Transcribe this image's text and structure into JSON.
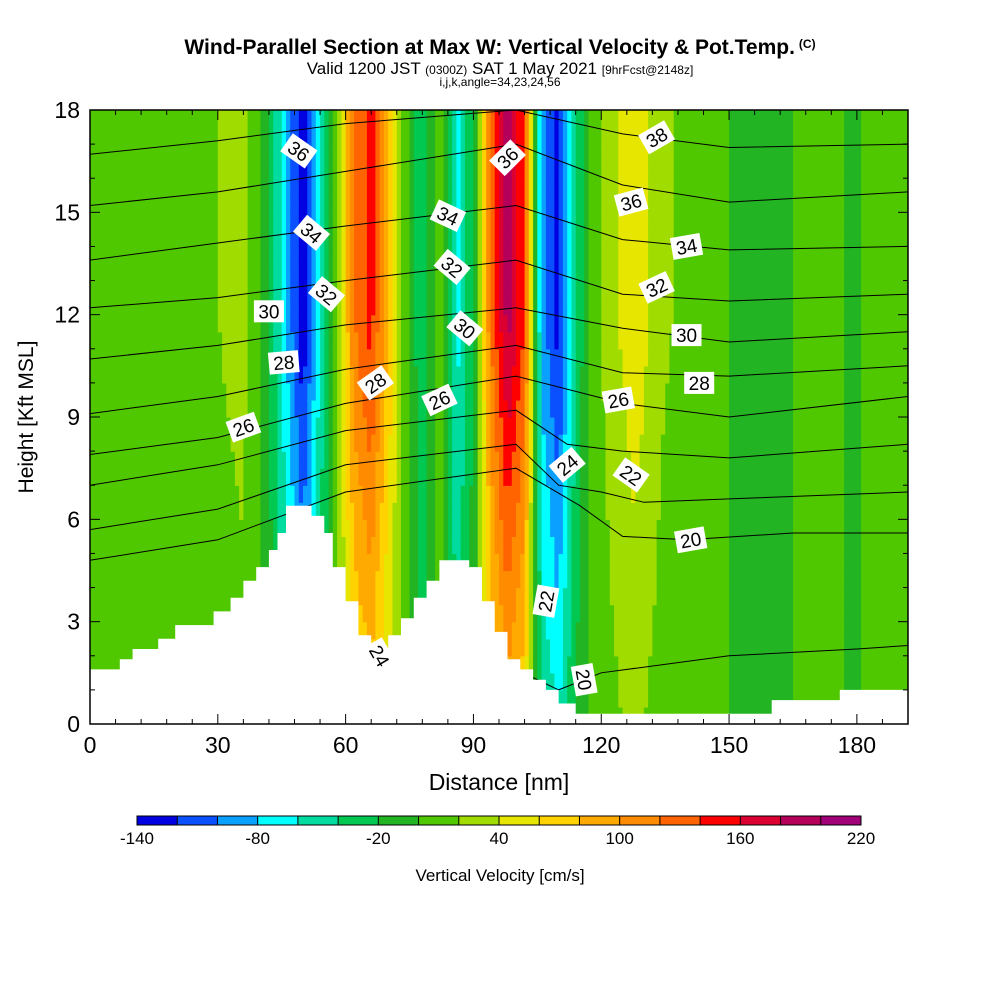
{
  "header": {
    "title": "Wind-Parallel Section at Max W: Vertical Velocity & Pot.Temp.",
    "copyright": "(C)",
    "subtitle_main": "Valid 1200 JST",
    "subtitle_utc": "(0300Z)",
    "subtitle_date": "SAT 1 May 2021",
    "subtitle_fcst": "[9hrFcst@2148z]",
    "index_line": "i,j,k,angle=34,23,24,56"
  },
  "chart_data": {
    "type": "heatmap",
    "title": "Wind-Parallel Section at Max W: Vertical Velocity & Pot.Temp.",
    "xlabel": "Distance [nm]",
    "ylabel": "Height [Kft MSL]",
    "xlim": [
      0,
      192
    ],
    "ylim": [
      0,
      18
    ],
    "xticks": [
      0,
      30,
      60,
      90,
      120,
      150,
      180
    ],
    "yticks": [
      0,
      3,
      6,
      9,
      12,
      15,
      18
    ],
    "colorbar": {
      "label": "Vertical Velocity [cm/s]",
      "tick_labels": [
        "-140",
        "-80",
        "-20",
        "40",
        "100",
        "160",
        "220"
      ],
      "tick_values": [
        -140,
        -80,
        -20,
        40,
        100,
        160,
        220
      ],
      "levels": [
        -140,
        -120,
        -100,
        -80,
        -60,
        -40,
        -20,
        0,
        20,
        40,
        60,
        80,
        100,
        120,
        140,
        160,
        180,
        200,
        220
      ],
      "colors": [
        "#0000e0",
        "#0a50ff",
        "#0aa0ff",
        "#00ffff",
        "#00dca0",
        "#00c850",
        "#22b422",
        "#50c800",
        "#a0dc00",
        "#e6e600",
        "#ffd200",
        "#ffaa00",
        "#ff8c00",
        "#ff6400",
        "#ff0000",
        "#dc0032",
        "#b4005a",
        "#a00078",
        "#780096"
      ]
    },
    "vertical_velocity_columns": [
      {
        "x": 0,
        "w": 8
      },
      {
        "x": 8,
        "w": 8
      },
      {
        "x": 16,
        "w": 12
      },
      {
        "x": 24,
        "w": 8
      },
      {
        "x": 30,
        "w": 20
      },
      {
        "x": 36,
        "w": 28
      },
      {
        "x": 42,
        "w": -20
      },
      {
        "x": 46,
        "w": -80
      },
      {
        "x": 50,
        "w": -140
      },
      {
        "x": 54,
        "w": -60
      },
      {
        "x": 58,
        "w": 20
      },
      {
        "x": 62,
        "w": 120
      },
      {
        "x": 66,
        "w": 150
      },
      {
        "x": 70,
        "w": 80
      },
      {
        "x": 74,
        "w": 10
      },
      {
        "x": 78,
        "w": -40
      },
      {
        "x": 82,
        "w": 20
      },
      {
        "x": 86,
        "w": -70
      },
      {
        "x": 90,
        "w": -20
      },
      {
        "x": 94,
        "w": 120
      },
      {
        "x": 98,
        "w": 190
      },
      {
        "x": 102,
        "w": 140
      },
      {
        "x": 106,
        "w": -90
      },
      {
        "x": 110,
        "w": -130
      },
      {
        "x": 114,
        "w": -40
      },
      {
        "x": 118,
        "w": 10
      },
      {
        "x": 124,
        "w": 40
      },
      {
        "x": 128,
        "w": 55
      },
      {
        "x": 134,
        "w": 25
      },
      {
        "x": 142,
        "w": 10
      },
      {
        "x": 150,
        "w": 0
      },
      {
        "x": 160,
        "w": -10
      },
      {
        "x": 170,
        "w": 10
      },
      {
        "x": 180,
        "w": -5
      },
      {
        "x": 186,
        "w": 15
      },
      {
        "x": 192,
        "w": 15
      }
    ],
    "terrain": [
      [
        0,
        1.6
      ],
      [
        7,
        1.6
      ],
      [
        7,
        1.9
      ],
      [
        10,
        1.9
      ],
      [
        10,
        2.2
      ],
      [
        16,
        2.2
      ],
      [
        16,
        2.5
      ],
      [
        20,
        2.5
      ],
      [
        20,
        2.9
      ],
      [
        29,
        2.9
      ],
      [
        29,
        3.3
      ],
      [
        33,
        3.3
      ],
      [
        33,
        3.7
      ],
      [
        36,
        3.7
      ],
      [
        36,
        4.2
      ],
      [
        39,
        4.2
      ],
      [
        39,
        4.6
      ],
      [
        42,
        4.6
      ],
      [
        42,
        5.1
      ],
      [
        44,
        5.1
      ],
      [
        44,
        5.6
      ],
      [
        46,
        5.6
      ],
      [
        46,
        6.4
      ],
      [
        52,
        6.4
      ],
      [
        52,
        6.1
      ],
      [
        55,
        6.1
      ],
      [
        55,
        5.6
      ],
      [
        57,
        5.6
      ],
      [
        57,
        4.6
      ],
      [
        60,
        4.6
      ],
      [
        60,
        3.6
      ],
      [
        63,
        3.6
      ],
      [
        63,
        2.6
      ],
      [
        66,
        2.6
      ],
      [
        66,
        2.0
      ],
      [
        70,
        2.0
      ],
      [
        70,
        2.6
      ],
      [
        73,
        2.6
      ],
      [
        73,
        3.1
      ],
      [
        76,
        3.1
      ],
      [
        76,
        3.7
      ],
      [
        79,
        3.7
      ],
      [
        79,
        4.2
      ],
      [
        82,
        4.2
      ],
      [
        82,
        4.8
      ],
      [
        89,
        4.8
      ],
      [
        89,
        4.6
      ],
      [
        92,
        4.6
      ],
      [
        92,
        3.6
      ],
      [
        95,
        3.6
      ],
      [
        95,
        2.7
      ],
      [
        98,
        2.7
      ],
      [
        98,
        1.9
      ],
      [
        101,
        1.9
      ],
      [
        101,
        1.6
      ],
      [
        104,
        1.6
      ],
      [
        104,
        1.3
      ],
      [
        107,
        1.3
      ],
      [
        107,
        1.0
      ],
      [
        110,
        1.0
      ],
      [
        110,
        0.6
      ],
      [
        114,
        0.6
      ],
      [
        114,
        0.3
      ],
      [
        160,
        0.3
      ],
      [
        160,
        0.7
      ],
      [
        176,
        0.7
      ],
      [
        176,
        1.0
      ],
      [
        192,
        1.0
      ]
    ],
    "theta_contours": [
      {
        "label": "20",
        "pts": [
          [
            0,
            0.9
          ],
          [
            30,
            1.3
          ],
          [
            60,
            1.8
          ],
          [
            100,
            1.6
          ],
          [
            110,
            1.0
          ],
          [
            120,
            1.5
          ],
          [
            150,
            2.0
          ],
          [
            180,
            2.2
          ],
          [
            192,
            2.3
          ]
        ]
      },
      {
        "label": "20",
        "pts": [
          [
            0,
            4.8
          ],
          [
            30,
            5.4
          ],
          [
            60,
            6.8
          ],
          [
            100,
            7.5
          ],
          [
            115,
            6.4
          ],
          [
            125,
            5.5
          ],
          [
            140,
            5.4
          ],
          [
            165,
            5.6
          ],
          [
            192,
            5.6
          ]
        ]
      },
      {
        "label": "22",
        "pts": [
          [
            0,
            5.7
          ],
          [
            30,
            6.3
          ],
          [
            60,
            7.6
          ],
          [
            100,
            8.2
          ],
          [
            110,
            7.0
          ],
          [
            120,
            6.8
          ],
          [
            130,
            6.5
          ],
          [
            150,
            6.6
          ],
          [
            192,
            6.8
          ]
        ]
      },
      {
        "label": "24",
        "pts": [
          [
            0,
            7.0
          ],
          [
            30,
            7.6
          ],
          [
            60,
            8.6
          ],
          [
            100,
            9.2
          ],
          [
            112,
            8.2
          ],
          [
            125,
            8.0
          ],
          [
            150,
            7.8
          ],
          [
            192,
            8.2
          ]
        ]
      },
      {
        "label": "26",
        "pts": [
          [
            0,
            7.9
          ],
          [
            30,
            8.4
          ],
          [
            60,
            9.4
          ],
          [
            100,
            10.2
          ],
          [
            125,
            9.4
          ],
          [
            150,
            9.0
          ],
          [
            192,
            9.6
          ]
        ]
      },
      {
        "label": "28",
        "pts": [
          [
            0,
            9.1
          ],
          [
            30,
            9.6
          ],
          [
            60,
            10.4
          ],
          [
            100,
            11.1
          ],
          [
            125,
            10.3
          ],
          [
            150,
            10.2
          ],
          [
            192,
            10.5
          ]
        ]
      },
      {
        "label": "30",
        "pts": [
          [
            0,
            10.7
          ],
          [
            30,
            11.1
          ],
          [
            60,
            11.7
          ],
          [
            100,
            12.2
          ],
          [
            125,
            11.6
          ],
          [
            150,
            11.2
          ],
          [
            192,
            11.5
          ]
        ]
      },
      {
        "label": "32",
        "pts": [
          [
            0,
            12.2
          ],
          [
            30,
            12.5
          ],
          [
            60,
            13.0
          ],
          [
            100,
            13.6
          ],
          [
            125,
            12.6
          ],
          [
            150,
            12.4
          ],
          [
            192,
            12.6
          ]
        ]
      },
      {
        "label": "34",
        "pts": [
          [
            0,
            13.6
          ],
          [
            30,
            14.1
          ],
          [
            60,
            14.6
          ],
          [
            100,
            15.2
          ],
          [
            125,
            14.2
          ],
          [
            150,
            13.9
          ],
          [
            192,
            14.0
          ]
        ]
      },
      {
        "label": "36",
        "pts": [
          [
            0,
            15.2
          ],
          [
            30,
            15.6
          ],
          [
            60,
            16.2
          ],
          [
            100,
            17.0
          ],
          [
            125,
            15.8
          ],
          [
            150,
            15.3
          ],
          [
            192,
            15.6
          ]
        ]
      },
      {
        "label": "38",
        "pts": [
          [
            0,
            16.7
          ],
          [
            30,
            17.1
          ],
          [
            60,
            17.6
          ],
          [
            100,
            18.0
          ],
          [
            125,
            17.3
          ],
          [
            150,
            16.9
          ],
          [
            192,
            17.0
          ]
        ]
      }
    ],
    "contour_labels": [
      {
        "text": "36",
        "x": 49,
        "y": 16.8,
        "rot": 35
      },
      {
        "text": "34",
        "x": 52,
        "y": 14.4,
        "rot": 40
      },
      {
        "text": "32",
        "x": 55.5,
        "y": 12.6,
        "rot": 40
      },
      {
        "text": "30",
        "x": 42,
        "y": 12.1,
        "rot": 0
      },
      {
        "text": "28",
        "x": 45.5,
        "y": 10.6,
        "rot": -5
      },
      {
        "text": "26",
        "x": 36,
        "y": 8.7,
        "rot": -20
      },
      {
        "text": "28",
        "x": 67,
        "y": 10.0,
        "rot": -35
      },
      {
        "text": "26",
        "x": 82,
        "y": 9.5,
        "rot": -25
      },
      {
        "text": "34",
        "x": 84,
        "y": 14.9,
        "rot": 25
      },
      {
        "text": "32",
        "x": 85,
        "y": 13.4,
        "rot": 40
      },
      {
        "text": "30",
        "x": 88,
        "y": 11.6,
        "rot": 40
      },
      {
        "text": "36",
        "x": 98,
        "y": 16.6,
        "rot": -45
      },
      {
        "text": "38",
        "x": 133,
        "y": 17.2,
        "rot": -30
      },
      {
        "text": "36",
        "x": 127,
        "y": 15.3,
        "rot": -15
      },
      {
        "text": "34",
        "x": 140,
        "y": 14.0,
        "rot": -10
      },
      {
        "text": "32",
        "x": 133,
        "y": 12.8,
        "rot": -25
      },
      {
        "text": "30",
        "x": 140,
        "y": 11.4,
        "rot": 0
      },
      {
        "text": "28",
        "x": 143,
        "y": 10.0,
        "rot": 0
      },
      {
        "text": "26",
        "x": 124,
        "y": 9.5,
        "rot": -10
      },
      {
        "text": "24",
        "x": 112,
        "y": 7.6,
        "rot": -40
      },
      {
        "text": "22",
        "x": 127,
        "y": 7.3,
        "rot": 35
      },
      {
        "text": "20",
        "x": 141,
        "y": 5.4,
        "rot": -10
      },
      {
        "text": "24",
        "x": 68,
        "y": 2.0,
        "rot": 60
      },
      {
        "text": "22",
        "x": 107,
        "y": 3.6,
        "rot": -80
      },
      {
        "text": "20",
        "x": 116,
        "y": 1.3,
        "rot": 80
      }
    ]
  }
}
